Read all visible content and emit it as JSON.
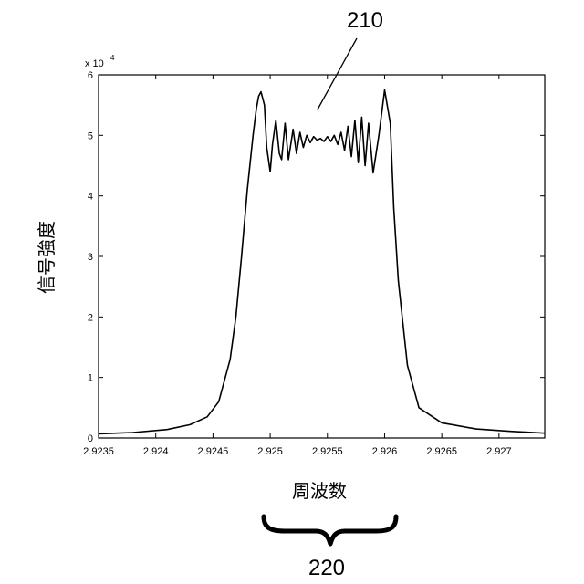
{
  "chart_data": {
    "type": "line",
    "title": "",
    "xlabel": "周波数",
    "ylabel": "信号強度",
    "x_scale_label": "x 10",
    "x_scale_exponent": "4",
    "xlim": [
      2.9235,
      2.9274
    ],
    "ylim": [
      0,
      60000
    ],
    "x_ticks": [
      "2.9235",
      "2.924",
      "2.9245",
      "2.925",
      "2.9255",
      "2.926",
      "2.9265",
      "2.927"
    ],
    "y_ticks": [
      "0",
      "1",
      "2",
      "3",
      "4",
      "5",
      "6"
    ],
    "grid": false,
    "legend": "none",
    "line_color": "#000000",
    "series": [
      {
        "x": [
          2.9235,
          2.9238,
          2.9241,
          2.9243,
          2.92445,
          2.92455,
          2.92465,
          2.9247,
          2.92475,
          2.9248,
          2.92485,
          2.92488,
          2.9249,
          2.92492,
          2.92495,
          2.92497,
          2.925,
          2.92502,
          2.92505,
          2.92508,
          2.9251,
          2.92513,
          2.92516,
          2.9252,
          2.92523,
          2.92526,
          2.92529,
          2.92532,
          2.92535,
          2.92538,
          2.92541,
          2.92544,
          2.92547,
          2.9255,
          2.92553,
          2.92556,
          2.92559,
          2.92562,
          2.92565,
          2.92568,
          2.92571,
          2.92574,
          2.92577,
          2.9258,
          2.92583,
          2.92586,
          2.9259,
          2.92595,
          2.926,
          2.92605,
          2.92608,
          2.92612,
          2.9262,
          2.9263,
          2.9265,
          2.9268,
          2.9271,
          2.9274
        ],
        "y": [
          700,
          900,
          1400,
          2200,
          3500,
          6000,
          13000,
          20000,
          30000,
          41000,
          50000,
          54500,
          56500,
          57200,
          55000,
          48000,
          44000,
          48500,
          52500,
          47000,
          46000,
          52000,
          46000,
          51000,
          47000,
          50500,
          48000,
          50000,
          48800,
          49800,
          49200,
          49500,
          49000,
          49800,
          49000,
          50000,
          48500,
          50500,
          47500,
          51500,
          46500,
          52500,
          45500,
          53000,
          45000,
          52000,
          43800,
          50000,
          57500,
          52000,
          38000,
          26000,
          12000,
          5000,
          2500,
          1500,
          1100,
          800
        ]
      }
    ]
  },
  "annotations": {
    "peak_label": "210",
    "bandwidth_label": "220"
  }
}
